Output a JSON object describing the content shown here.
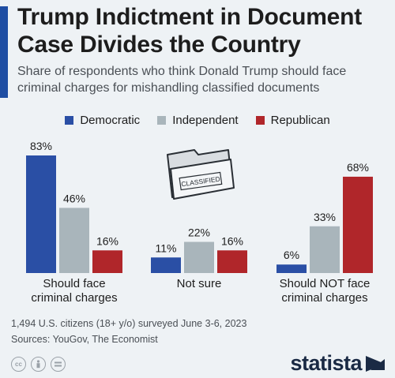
{
  "header": {
    "title": "Trump Indictment in Document Case Divides the Country",
    "subtitle": "Share of respondents who think Donald Trump should face criminal charges for mishandling classified documents",
    "accent_color": "#1f4ea3"
  },
  "legend": [
    {
      "label": "Democratic",
      "color": "#2a4fa5"
    },
    {
      "label": "Independent",
      "color": "#a9b5bb"
    },
    {
      "label": "Republican",
      "color": "#b0262a"
    }
  ],
  "illustration": {
    "icon": "classified-folder-icon",
    "label": "CLASSIFIED"
  },
  "chart_data": {
    "type": "bar",
    "categories": [
      "Should face criminal charges",
      "Not sure",
      "Should NOT face criminal charges"
    ],
    "category_labels": [
      [
        "Should face",
        "criminal charges"
      ],
      [
        "Not sure"
      ],
      [
        "Should NOT face",
        "criminal charges"
      ]
    ],
    "series": [
      {
        "name": "Democratic",
        "color": "#2a4fa5",
        "values": [
          83,
          11,
          6
        ]
      },
      {
        "name": "Independent",
        "color": "#a9b5bb",
        "values": [
          46,
          22,
          33
        ]
      },
      {
        "name": "Republican",
        "color": "#b0262a",
        "values": [
          16,
          16,
          68
        ]
      }
    ],
    "value_suffix": "%",
    "ylim": [
      0,
      83
    ],
    "grid": false,
    "legend_position": "top"
  },
  "footer": {
    "note": "1,494 U.S. citizens (18+ y/o) surveyed June 3-6, 2023",
    "sources": "Sources: YouGov, The Economist",
    "license_icons": [
      "cc-icon",
      "person-icon",
      "equals-icon"
    ],
    "brand": "statista"
  }
}
